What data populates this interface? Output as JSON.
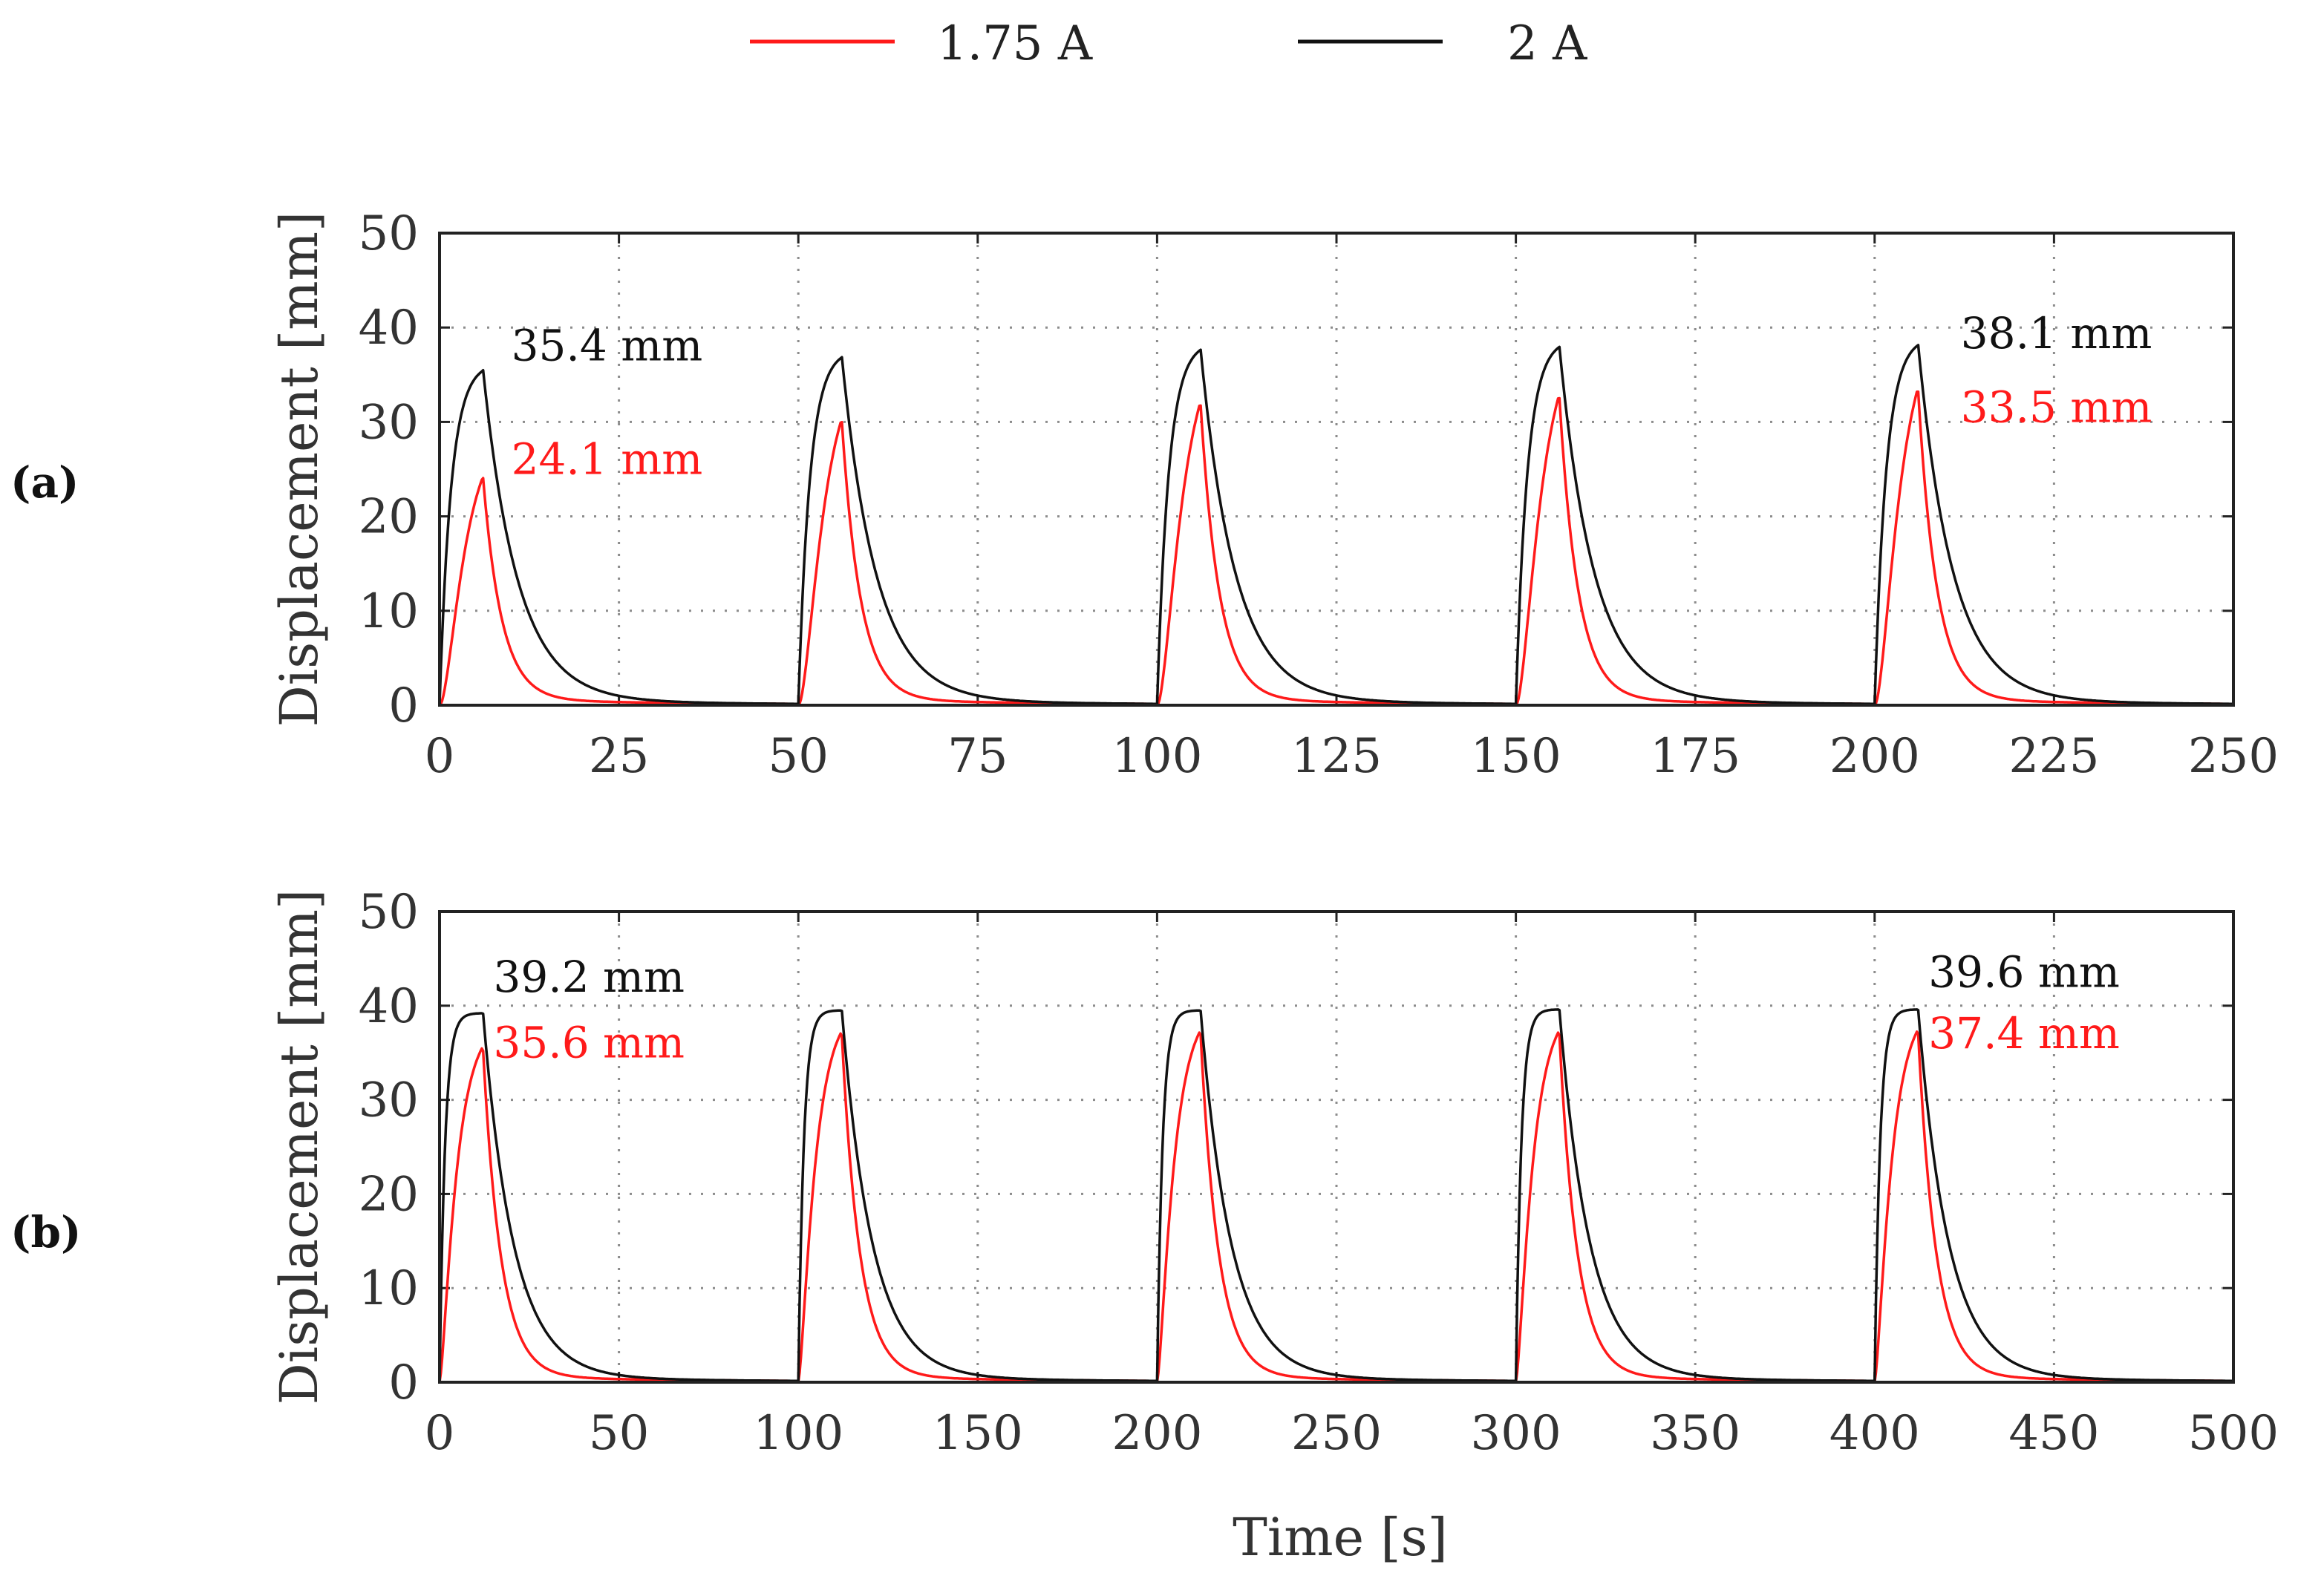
{
  "legend": {
    "items": [
      {
        "label": "1.75 A",
        "color": "#ff1a1a"
      },
      {
        "label": "2 A",
        "color": "#111111"
      }
    ]
  },
  "colors": {
    "series_175": "#ff1a1a",
    "series_2": "#111111",
    "grid": "#8c8c8c",
    "axis": "#222222"
  },
  "chart_data": [
    {
      "type": "line",
      "panel_label": "(a)",
      "ylabel": "Displacement [mm]",
      "xlabel": "",
      "xlim": [
        0,
        250
      ],
      "ylim": [
        0,
        50
      ],
      "xticks": [
        0,
        25,
        50,
        75,
        100,
        125,
        150,
        175,
        200,
        225,
        250
      ],
      "yticks": [
        0,
        10,
        20,
        30,
        40,
        50
      ],
      "grid": true,
      "period": 50,
      "cycle_starts": [
        0,
        50,
        100,
        150,
        200
      ],
      "peak_time_offset": 6,
      "series": [
        {
          "name": "1.75 A",
          "peaks": [
            24.1,
            30.2,
            32.0,
            32.8,
            33.5
          ],
          "rise_tau": 2.6,
          "rise_power": 2.0,
          "decay_tau": 2.6
        },
        {
          "name": "2 A",
          "peaks": [
            35.4,
            36.8,
            37.6,
            37.9,
            38.1
          ],
          "rise_tau": 1.6,
          "rise_power": 1.0,
          "decay_tau": 4.8
        }
      ],
      "annotations": [
        {
          "text": "35.4 mm",
          "series": "2 A",
          "x": 10,
          "y": 36.5
        },
        {
          "text": "24.1 mm",
          "series": "1.75 A",
          "x": 10,
          "y": 24.5
        },
        {
          "text": "38.1 mm",
          "series": "2 A",
          "x": 212,
          "y": 37.8
        },
        {
          "text": "33.5 mm",
          "series": "1.75 A",
          "x": 212,
          "y": 30.0
        }
      ]
    },
    {
      "type": "line",
      "panel_label": "(b)",
      "ylabel": "Displacement [mm]",
      "xlabel": "Time [s]",
      "xlim": [
        0,
        500
      ],
      "ylim": [
        0,
        50
      ],
      "xticks": [
        0,
        50,
        100,
        150,
        200,
        250,
        300,
        350,
        400,
        450,
        500
      ],
      "yticks": [
        0,
        10,
        20,
        30,
        40,
        50
      ],
      "grid": true,
      "period": 100,
      "cycle_starts": [
        0,
        100,
        200,
        300,
        400
      ],
      "peak_time_offset": 12,
      "series": [
        {
          "name": "1.75 A",
          "peaks": [
            35.6,
            37.2,
            37.3,
            37.3,
            37.4
          ],
          "rise_tau": 4.0,
          "rise_power": 1.5,
          "decay_tau": 5.0
        },
        {
          "name": "2 A",
          "peaks": [
            39.2,
            39.5,
            39.5,
            39.6,
            39.6
          ],
          "rise_tau": 1.5,
          "rise_power": 1.0,
          "decay_tau": 8.5
        }
      ],
      "annotations": [
        {
          "text": "39.2 mm",
          "series": "2 A",
          "x": 15,
          "y": 41.5
        },
        {
          "text": "35.6 mm",
          "series": "1.75 A",
          "x": 15,
          "y": 34.5
        },
        {
          "text": "39.6 mm",
          "series": "2 A",
          "x": 415,
          "y": 42.0
        },
        {
          "text": "37.4 mm",
          "series": "1.75 A",
          "x": 415,
          "y": 35.5
        }
      ]
    }
  ]
}
